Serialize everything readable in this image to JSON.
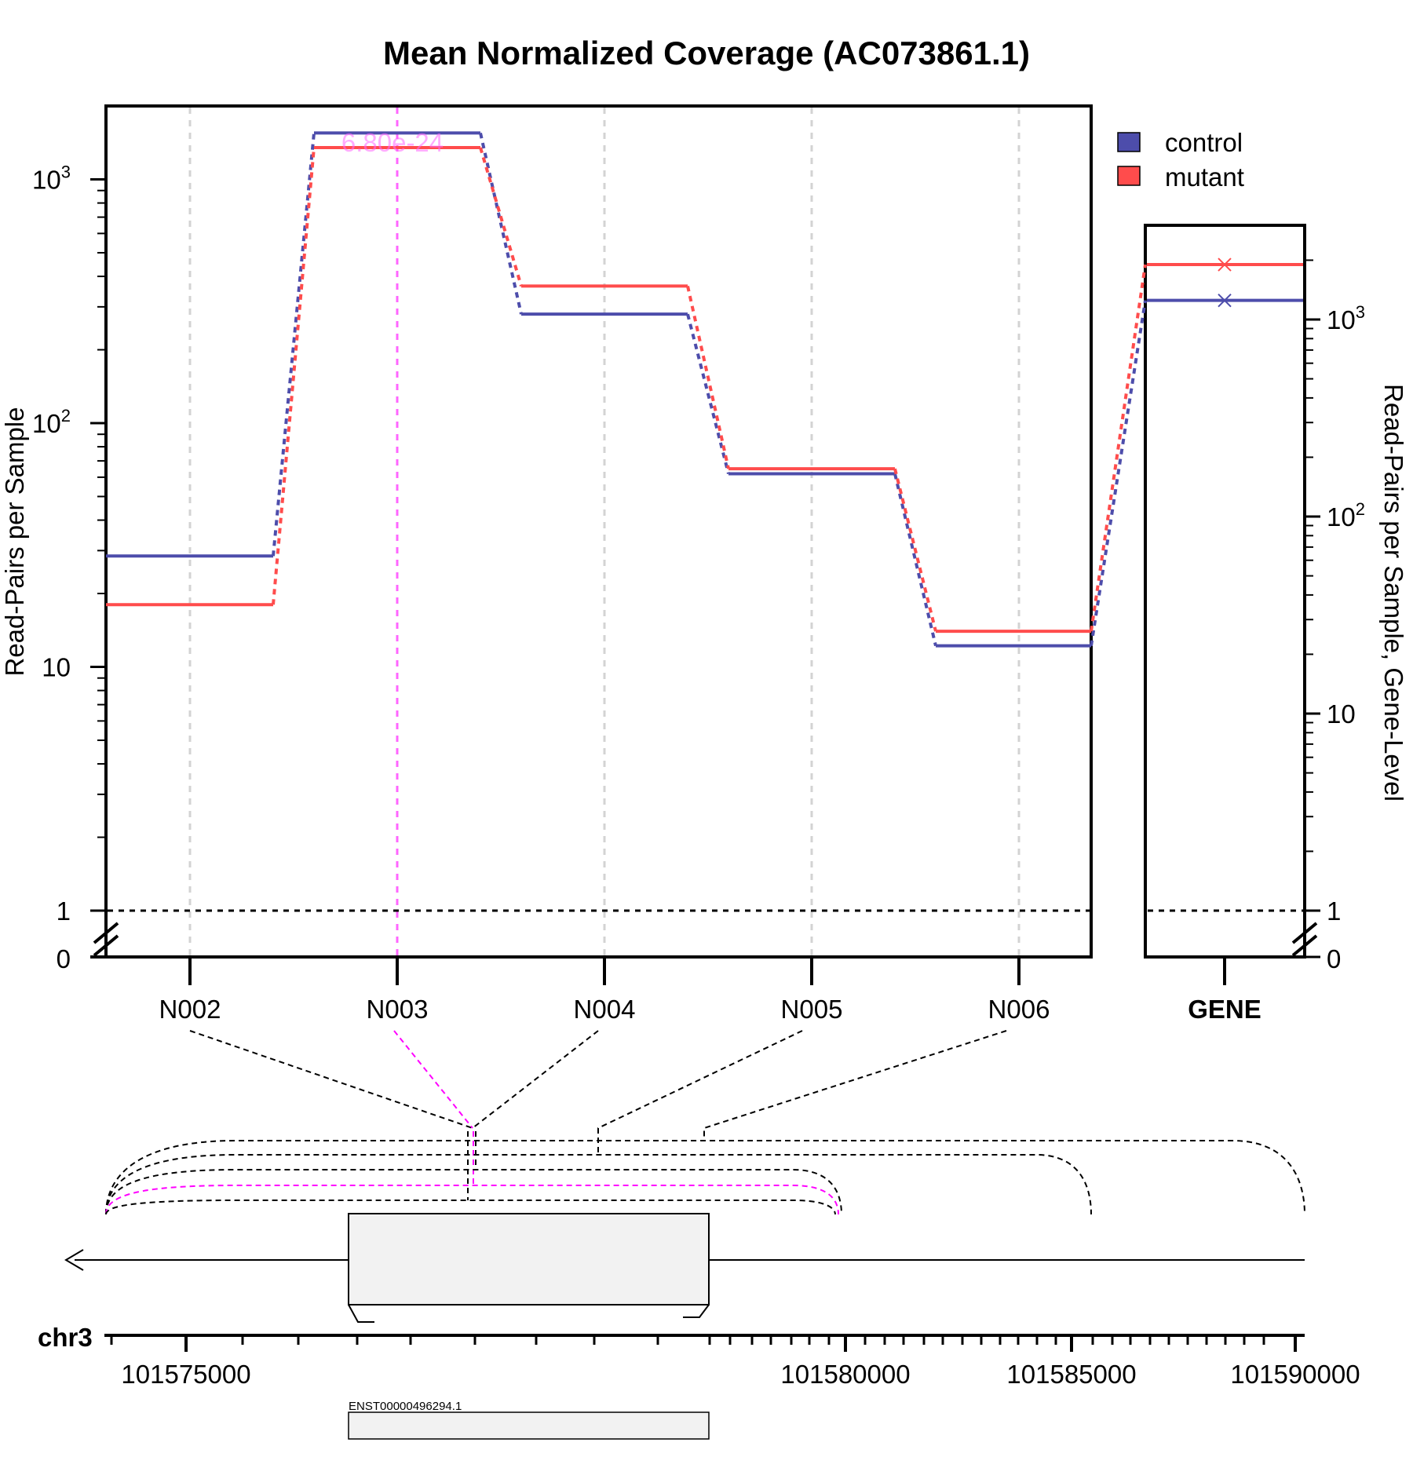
{
  "chart_data": {
    "type": "line",
    "title": "Mean Normalized Coverage (AC073861.1)",
    "ylabel": "Read-Pairs per Sample",
    "ylabel_right": "Read-Pairs per Sample, Gene-Level",
    "y_scale": "log",
    "y_ticks_left": [
      "0",
      "1",
      "10",
      "10^2",
      "10^3"
    ],
    "y_ticks_right": [
      "0",
      "1",
      "10",
      "10^2",
      "10^3"
    ],
    "categories": [
      "N002",
      "N003",
      "N004",
      "N005",
      "N006"
    ],
    "series": [
      {
        "name": "control",
        "color": "#4d4dab",
        "values": [
          28.5,
          1550,
          280,
          62,
          12.2
        ]
      },
      {
        "name": "mutant",
        "color": "#ff4c4c",
        "values": [
          18,
          1350,
          365,
          65,
          14
        ]
      }
    ],
    "gene_panel": {
      "label": "GENE",
      "control": 1250,
      "mutant": 1900
    },
    "highlight": {
      "category": "N003",
      "label": "6.80e-24",
      "color": "#ff66ff"
    },
    "reference_line": 1,
    "legend": {
      "position": "top-right",
      "entries": [
        "control",
        "mutant"
      ]
    },
    "chromosome": "chr3",
    "genomic_ticks": [
      "101575000",
      "101580000",
      "101585000",
      "101590000"
    ],
    "transcript": "ENST00000496294.1"
  }
}
